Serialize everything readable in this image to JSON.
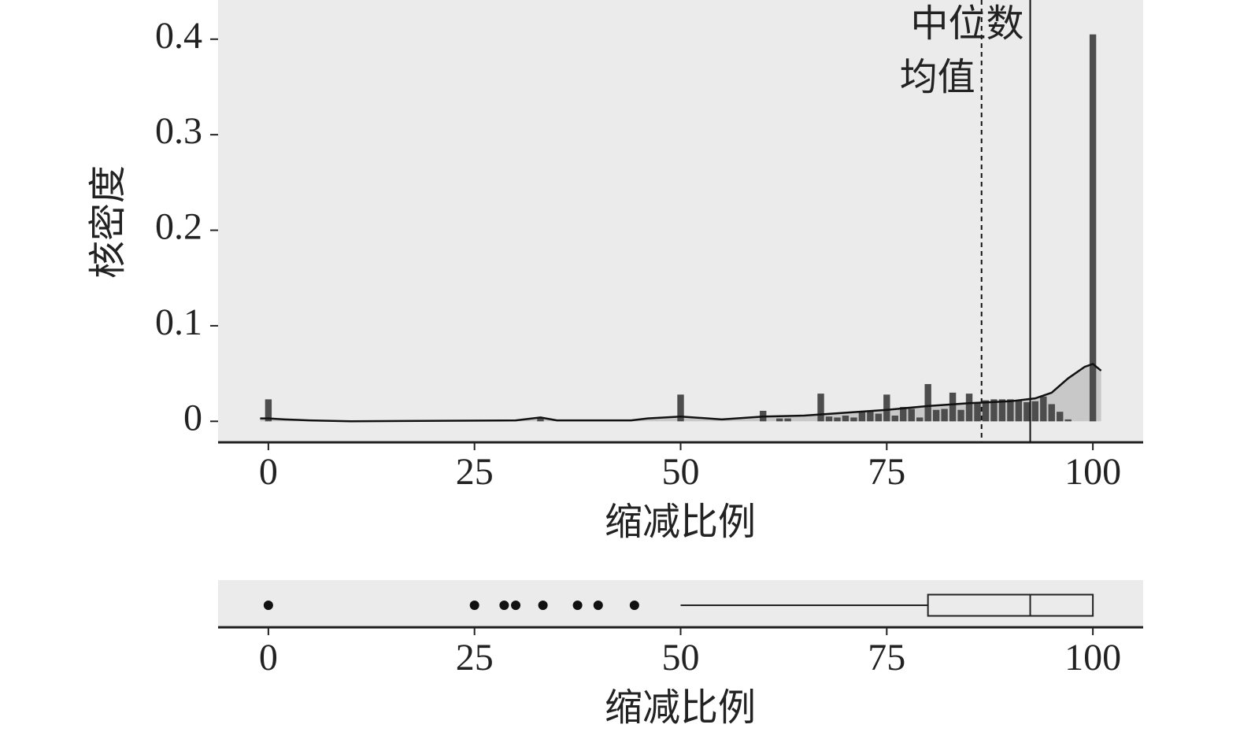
{
  "chart_data": [
    {
      "type": "histogram",
      "x_label": "缩减比例",
      "y_label": "核密度",
      "x": [
        0,
        25,
        33,
        50,
        60,
        62,
        63,
        67,
        68,
        69,
        70,
        71,
        72,
        73,
        74,
        75,
        76,
        77,
        78,
        79,
        80,
        81,
        82,
        83,
        84,
        85,
        86,
        87,
        88,
        89,
        90,
        91,
        92,
        93,
        94,
        95,
        96,
        97,
        100
      ],
      "values": [
        0.023,
        0.001,
        0.004,
        0.028,
        0.011,
        0.003,
        0.003,
        0.029,
        0.005,
        0.004,
        0.006,
        0.004,
        0.01,
        0.01,
        0.008,
        0.028,
        0.006,
        0.015,
        0.013,
        0.004,
        0.039,
        0.012,
        0.013,
        0.03,
        0.012,
        0.029,
        0.02,
        0.022,
        0.023,
        0.023,
        0.023,
        0.022,
        0.02,
        0.021,
        0.026,
        0.018,
        0.01,
        0.002,
        0.405
      ],
      "color": "#4d4d4d",
      "density": {
        "x": [
          -1,
          0,
          2,
          5,
          10,
          30,
          33,
          35,
          44,
          46,
          50,
          55,
          60,
          65,
          70,
          75,
          80,
          85,
          90,
          93,
          95,
          97,
          99,
          100,
          101
        ],
        "values": [
          0.003,
          0.003,
          0.002,
          0.001,
          0,
          0.001,
          0.004,
          0.001,
          0.001,
          0.003,
          0.005,
          0.002,
          0.005,
          0.006,
          0.009,
          0.012,
          0.016,
          0.019,
          0.021,
          0.024,
          0.03,
          0.045,
          0.057,
          0.06,
          0.053
        ],
        "color": "#c8c8c8"
      },
      "annotations": [
        {
          "text": "均值",
          "x": 86.5,
          "style": "dashed"
        },
        {
          "text": "中位数",
          "x": 92.4,
          "style": "solid"
        }
      ],
      "xlim": [
        -6.1,
        106.1
      ],
      "xticks": [
        0,
        25,
        50,
        75,
        100
      ],
      "ylim": [
        -0.022,
        0.441
      ],
      "yticks": [
        0,
        0.1,
        0.2,
        0.3,
        0.4
      ]
    },
    {
      "type": "box",
      "x_label": "缩减比例",
      "whisker_low": 50,
      "q1": 80,
      "median": 92.4,
      "q3": 100,
      "whisker_high": 100,
      "outliers": [
        0,
        25,
        28.6,
        30,
        33.3,
        37.5,
        40,
        44.4
      ],
      "xlim": [
        -6.1,
        106.1
      ],
      "xticks": [
        0,
        25,
        50,
        75,
        100
      ]
    }
  ]
}
